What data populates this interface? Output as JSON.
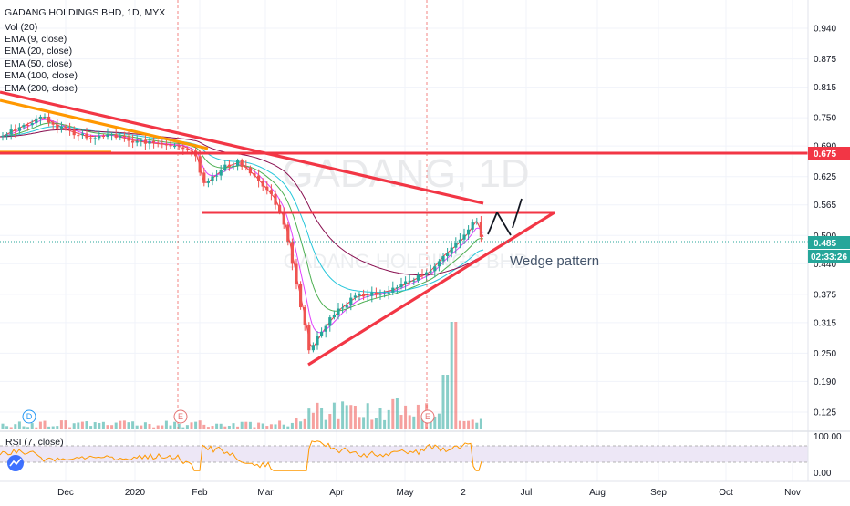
{
  "header": {
    "title": "GADANG HOLDINGS BHD, 1D, MYX",
    "indicators": [
      "Vol (20)",
      "EMA (9, close)",
      "EMA (20, close)",
      "EMA (50, close)",
      "EMA (100, close)",
      "EMA (200, close)"
    ]
  },
  "watermark": {
    "main": "GADANG, 1D",
    "sub": "GADANG HOLDINGS BHD"
  },
  "annotation": {
    "text": "Wedge pattern"
  },
  "price_axis": {
    "ticks": [
      "0.940",
      "0.875",
      "0.815",
      "0.750",
      "0.690",
      "0.625",
      "0.565",
      "0.500",
      "0.440",
      "0.375",
      "0.315",
      "0.250",
      "0.190",
      "0.125"
    ],
    "tick_values": [
      0.94,
      0.875,
      0.815,
      0.75,
      0.69,
      0.625,
      0.565,
      0.5,
      0.44,
      0.375,
      0.315,
      0.25,
      0.19,
      0.125
    ],
    "resistance_badge": "0.675",
    "last_price_badge": "0.485",
    "countdown_badge": "02:33:26"
  },
  "time_axis": {
    "labels": [
      "Dec",
      "2020",
      "Feb",
      "Mar",
      "Apr",
      "May",
      "2",
      "Jul",
      "Aug",
      "Sep",
      "Oct",
      "Nov"
    ]
  },
  "events": [
    {
      "label": "D",
      "color": "#2196f3"
    },
    {
      "label": "E",
      "color": "#e57373"
    },
    {
      "label": "E",
      "color": "#e57373"
    }
  ],
  "rsi": {
    "title": "RSI (7, close)",
    "ticks": [
      "100.00",
      "0.00"
    ]
  },
  "colors": {
    "up": "#26a69a",
    "down": "#ef5350",
    "trendline": "#f23645",
    "orange": "#ff9800",
    "price_line": "#26a69a",
    "countdown_bg": "#26a69a",
    "ema9": "#f23645",
    "ema20": "#e040fb",
    "ema50": "#4caf50",
    "ema100": "#26c6da",
    "ema200": "#880e4f",
    "rsi": "#ff9800",
    "rsi_band": "#ede7f6"
  },
  "chart_data": {
    "type": "candlestick",
    "title": "GADANG HOLDINGS BHD, 1D, MYX",
    "ylim": [
      0.1,
      0.98
    ],
    "y_scale": "linear",
    "levels": [
      {
        "name": "resistance",
        "value": 0.675
      },
      {
        "name": "breakout_line",
        "value": 0.545
      }
    ],
    "trendlines": [
      {
        "name": "descending_top",
        "from": [
          "2019-11-04",
          0.805
        ],
        "to": [
          "2020-06-01",
          0.57
        ]
      },
      {
        "name": "ascending_base",
        "from": [
          "2020-03-19",
          0.225
        ],
        "to": [
          "2020-06-26",
          0.545
        ]
      }
    ],
    "annotation": "Wedge pattern",
    "price_series": [
      [
        "2019-11-05",
        0.73
      ],
      [
        "2019-11-15",
        0.72
      ],
      [
        "2019-11-25",
        0.74
      ],
      [
        "2019-12-05",
        0.715
      ],
      [
        "2019-12-15",
        0.705
      ],
      [
        "2019-12-25",
        0.7
      ],
      [
        "2020-01-05",
        0.695
      ],
      [
        "2020-01-15",
        0.71
      ],
      [
        "2020-01-25",
        0.68
      ],
      [
        "2020-02-01",
        0.63
      ],
      [
        "2020-02-10",
        0.66
      ],
      [
        "2020-02-20",
        0.64
      ],
      [
        "2020-03-01",
        0.585
      ],
      [
        "2020-03-10",
        0.44
      ],
      [
        "2020-03-19",
        0.25
      ],
      [
        "2020-03-26",
        0.3
      ],
      [
        "2020-04-05",
        0.33
      ],
      [
        "2020-04-15",
        0.37
      ],
      [
        "2020-04-25",
        0.375
      ],
      [
        "2020-05-05",
        0.4
      ],
      [
        "2020-05-15",
        0.45
      ],
      [
        "2020-05-25",
        0.5
      ],
      [
        "2020-06-04",
        0.52
      ],
      [
        "2020-06-08",
        0.485
      ]
    ],
    "rsi_range": [
      0,
      100
    ]
  }
}
